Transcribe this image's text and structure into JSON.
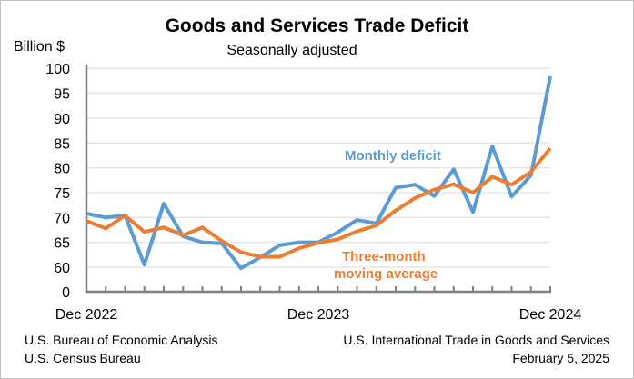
{
  "chart_data": {
    "type": "line",
    "title": "Goods and Services Trade Deficit",
    "subtitle": "Seasonally adjusted",
    "ylabel": "Billion $",
    "ylim": [
      0,
      100
    ],
    "y_axis_break": [
      0,
      60
    ],
    "yticks": [
      "0",
      "60",
      "65",
      "70",
      "75",
      "80",
      "85",
      "90",
      "95",
      "100"
    ],
    "xtick_labels": [
      "Dec 2022",
      "Dec 2023",
      "Dec 2024"
    ],
    "x": [
      "Dec 2022",
      "Jan 2023",
      "Feb 2023",
      "Mar 2023",
      "Apr 2023",
      "May 2023",
      "Jun 2023",
      "Jul 2023",
      "Aug 2023",
      "Sep 2023",
      "Oct 2023",
      "Nov 2023",
      "Dec 2023",
      "Jan 2024",
      "Feb 2024",
      "Mar 2024",
      "Apr 2024",
      "May 2024",
      "Jun 2024",
      "Jul 2024",
      "Aug 2024",
      "Sep 2024",
      "Oct 2024",
      "Nov 2024",
      "Dec 2024"
    ],
    "grid": true,
    "series": [
      {
        "name": "Monthly deficit",
        "color": "#5b9bd5",
        "values": [
          70.8,
          70.0,
          70.4,
          60.5,
          72.8,
          66.2,
          65.0,
          64.8,
          59.8,
          62.0,
          64.4,
          65.0,
          65.0,
          67.0,
          69.5,
          68.8,
          76.0,
          76.6,
          74.3,
          79.7,
          71.1,
          84.3,
          74.2,
          78.5,
          98.4
        ]
      },
      {
        "name": "Three-month moving average",
        "color": "#ed7d31",
        "values": [
          69.3,
          67.8,
          70.4,
          67.1,
          68.0,
          66.4,
          68.0,
          65.3,
          63.0,
          62.1,
          62.1,
          63.8,
          64.9,
          65.6,
          67.2,
          68.4,
          71.4,
          73.9,
          75.6,
          76.7,
          75.0,
          78.2,
          76.6,
          79.2,
          83.9
        ]
      }
    ],
    "annotations": {
      "monthly": "Monthly deficit",
      "avg_line1": "Three-month",
      "avg_line2": "moving average"
    }
  },
  "footer": {
    "left1": "U.S. Bureau of Economic Analysis",
    "left2": "U.S. Census Bureau",
    "right1": "U.S. International Trade in Goods and Services",
    "right2": "February 5, 2025"
  }
}
